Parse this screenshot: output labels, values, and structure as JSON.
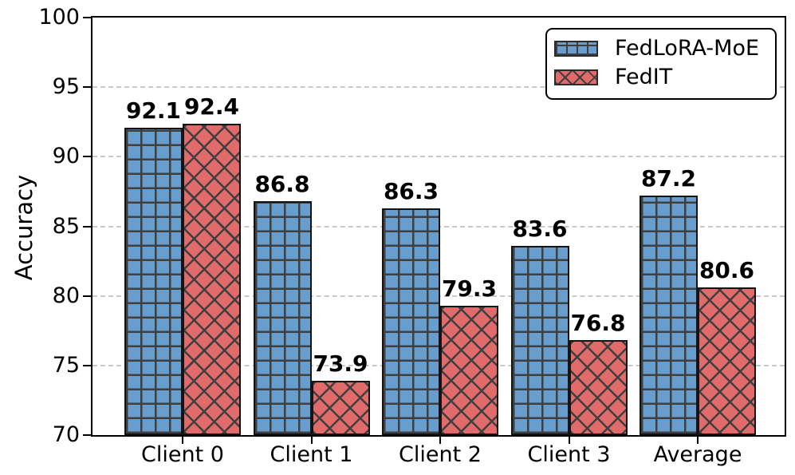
{
  "chart_data": {
    "type": "bar",
    "title": "",
    "ylabel": "Accuracy",
    "xlabel": "",
    "categories": [
      "Client 0",
      "Client 1",
      "Client 2",
      "Client 3",
      "Average"
    ],
    "series": [
      {
        "name": "FedLoRA-MoE",
        "color": "#689dcd",
        "hatch": "grid",
        "values": [
          92.1,
          86.8,
          86.3,
          83.6,
          87.2
        ]
      },
      {
        "name": "FedIT",
        "color": "#e16a6a",
        "hatch": "cross",
        "values": [
          92.4,
          73.9,
          79.3,
          76.8,
          80.6
        ]
      }
    ],
    "ylim": [
      70,
      100
    ],
    "yticks": [
      70,
      75,
      80,
      85,
      90,
      95,
      100
    ],
    "grid": "horizontal-dashed",
    "grid_color": "#c9c9c9",
    "bar_edge_color": "#141414",
    "hatch_color": "#3f3f3f",
    "legend_position": "upper-right",
    "bar_value_labels": true
  }
}
